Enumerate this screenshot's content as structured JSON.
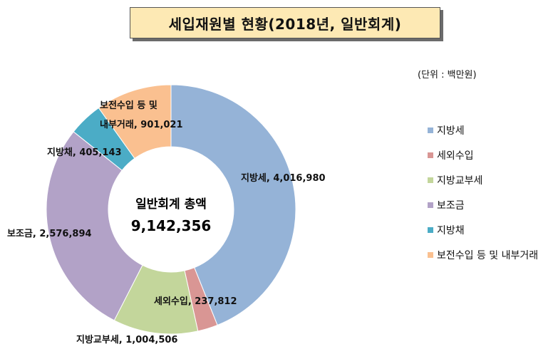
{
  "title": "세입재원별  현황(2018년, 일반회계)",
  "unit_note": "(단위 : 백만원)",
  "chart_data": {
    "type": "pie",
    "variant": "donut",
    "center_label": "일반회계 총액",
    "center_value": "9,142,356",
    "total": 9142356,
    "slices": [
      {
        "name": "지방세",
        "value": 4016980,
        "label": "지방세, 4,016,980",
        "color": "#95b3d7"
      },
      {
        "name": "세외수입",
        "value": 237812,
        "label": "세외수입, 237,812",
        "color": "#d99694"
      },
      {
        "name": "지방교부세",
        "value": 1004506,
        "label": "지방교부세, 1,004,506",
        "color": "#c3d69b"
      },
      {
        "name": "보조금",
        "value": 2576894,
        "label": "보조금, 2,576,894",
        "color": "#b2a2c7"
      },
      {
        "name": "지방채",
        "value": 405143,
        "label": "지방채, 405,143",
        "color": "#4bacc6"
      },
      {
        "name": "보전수입 등 및 내부거래",
        "value": 901021,
        "label_lines": [
          "보전수입 등 및",
          "내부거래, 901,021"
        ],
        "color": "#fac090"
      }
    ],
    "legend": {
      "position": "right",
      "items": [
        "지방세",
        "세외수입",
        "지방교부세",
        "보조금",
        "지방채",
        "보전수입 등 및 내부거래"
      ]
    }
  }
}
